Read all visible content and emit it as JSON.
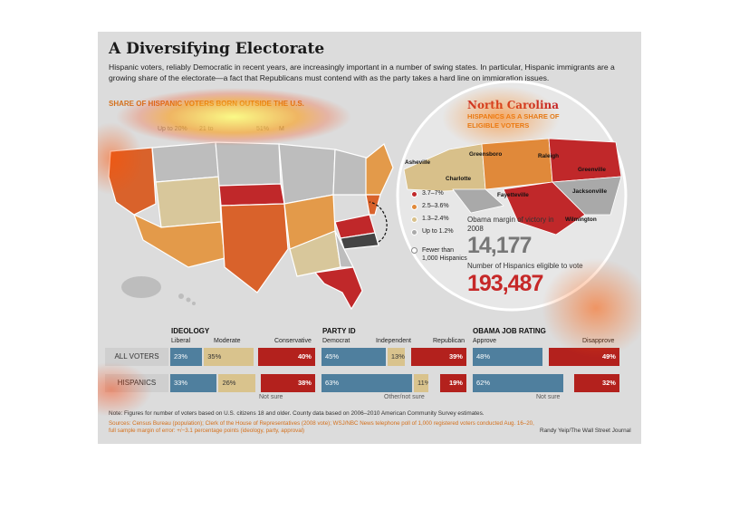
{
  "title": "A Diversifying Electorate",
  "intro": "Hispanic voters, reliably Democratic in recent years, are increasingly important in a number of swing states. In particular, Hispanic immigrants are a growing share of the electorate—a fact that Republicans must contend with as the party takes a hard line on immigration issues.",
  "map": {
    "title": "SHARE OF HISPANIC VOTERS BORN OUTSIDE THE U.S.",
    "legend": [
      "Up to 20%",
      "21 to",
      "51%",
      "M"
    ],
    "colors": {
      "high": "#c0282a",
      "midhigh": "#d9622b",
      "mid": "#e39a4a",
      "low": "#d8c79b",
      "none": "#bdbdbd"
    }
  },
  "nc": {
    "title": "North Carolina",
    "subtitle": "HISPANICS AS A SHARE OF ELIGIBLE VOTERS",
    "cities": [
      "Asheville",
      "Greensboro",
      "Raleigh",
      "Greenville",
      "Charlotte",
      "Fayetteville",
      "Jacksonville",
      "Wilmington"
    ],
    "legend": [
      {
        "label": "3.7–7%",
        "color": "#c0282a"
      },
      {
        "label": "2.5–3.6%",
        "color": "#e0893a"
      },
      {
        "label": "1.3–2.4%",
        "color": "#d8c08a"
      },
      {
        "label": "Up to 1.2%",
        "color": "#a9a9a9"
      },
      {
        "label": "Fewer than 1,000 Hispanics",
        "color": "#ffffff"
      }
    ],
    "margin_label": "Obama margin of victory in 2008",
    "margin_value": "14,177",
    "eligible_label": "Number of Hispanics eligible to vote",
    "eligible_value": "193,487"
  },
  "chart_data": [
    {
      "type": "bar",
      "title": "IDEOLOGY",
      "categories": [
        "ALL VOTERS",
        "HISPANICS"
      ],
      "series": [
        {
          "name": "Liberal",
          "values": [
            23,
            33
          ]
        },
        {
          "name": "Moderate",
          "values": [
            35,
            26
          ]
        },
        {
          "name": "Conservative",
          "values": [
            40,
            38
          ]
        }
      ],
      "note": "Not sure"
    },
    {
      "type": "bar",
      "title": "PARTY ID",
      "categories": [
        "ALL VOTERS",
        "HISPANICS"
      ],
      "series": [
        {
          "name": "Democrat",
          "values": [
            45,
            63
          ]
        },
        {
          "name": "Independent",
          "values": [
            13,
            11
          ]
        },
        {
          "name": "Republican",
          "values": [
            39,
            19
          ]
        }
      ],
      "note": "Other/not sure"
    },
    {
      "type": "bar",
      "title": "OBAMA JOB RATING",
      "categories": [
        "ALL VOTERS",
        "HISPANICS"
      ],
      "series": [
        {
          "name": "Approve",
          "values": [
            48,
            62
          ]
        },
        {
          "name": "Disapprove",
          "values": [
            49,
            32
          ]
        }
      ],
      "note": "Not sure"
    }
  ],
  "rows": [
    "ALL VOTERS",
    "HISPANICS"
  ],
  "note": "Note: Figures for number of voters based on U.S. citizens 18 and older. County data based on 2006–2010 American Community Survey estimates.",
  "sources": "Sources: Census Bureau (population); Clerk of the House of Representatives (2008 vote); WSJ/NBC News telephone poll of 1,000 registered voters conducted Aug. 16–20, full sample margin of error: +/−3.1 percentage points (ideology, party, approval)",
  "credit": "Randy Yeip/The Wall Street Journal"
}
